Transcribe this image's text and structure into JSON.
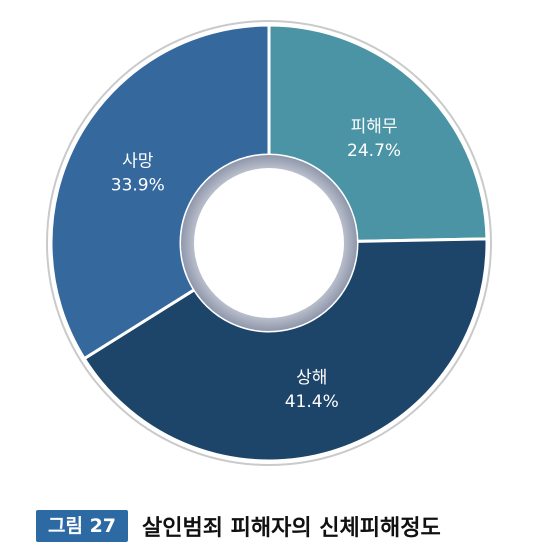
{
  "chart_data": {
    "type": "pie",
    "categories": [
      "피해무",
      "상해",
      "사망"
    ],
    "values": [
      24.7,
      41.4,
      33.9
    ],
    "value_labels": [
      "24.7%",
      "41.4%",
      "33.9%"
    ],
    "colors": [
      "#4a94a5",
      "#1d4469",
      "#35699e"
    ],
    "donut": true,
    "start_angle": "top",
    "direction": "clockwise",
    "legend": "none"
  },
  "caption": {
    "badge": "그림 27",
    "title": "살인범죄 피해자의 신체피해정도"
  }
}
